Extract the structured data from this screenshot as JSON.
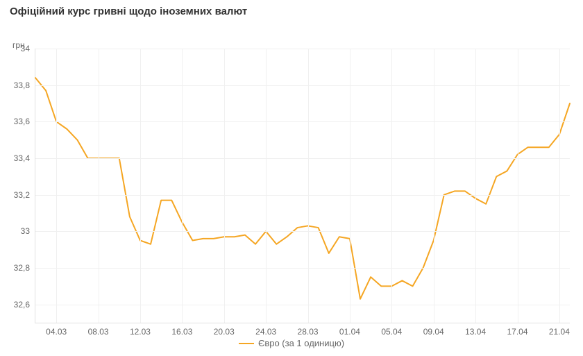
{
  "title": "Офіційний курс гривні щодо іноземних валют",
  "y_unit": "грн",
  "chart": {
    "type": "line",
    "background_color": "#ffffff",
    "grid_color": "#f0f0f0",
    "axis_color": "#e0e0e0",
    "title_fontsize": 15,
    "label_fontsize": 12,
    "label_color": "#666666",
    "ylim": [
      32.5,
      34.0
    ],
    "yticks": [
      32.6,
      32.8,
      33.0,
      33.2,
      33.4,
      33.6,
      33.8,
      34.0
    ],
    "xticks": [
      "04.03",
      "08.03",
      "12.03",
      "16.03",
      "20.03",
      "24.03",
      "28.03",
      "01.04",
      "05.04",
      "09.04",
      "13.04",
      "17.04",
      "21.04"
    ],
    "series": [
      {
        "name": "Євро (за 1 одиницю)",
        "color": "#f5a623",
        "line_width": 2,
        "values": [
          33.84,
          33.77,
          33.6,
          33.56,
          33.5,
          33.4,
          33.4,
          33.4,
          33.4,
          33.08,
          32.95,
          32.93,
          33.17,
          33.17,
          33.05,
          32.95,
          32.96,
          32.96,
          32.97,
          32.97,
          32.98,
          32.93,
          33.0,
          32.93,
          32.97,
          33.02,
          33.03,
          33.02,
          32.88,
          32.97,
          32.96,
          32.63,
          32.75,
          32.7,
          32.7,
          32.73,
          32.7,
          32.8,
          32.95,
          33.2,
          33.22,
          33.22,
          33.18,
          33.15,
          33.3,
          33.33,
          33.42,
          33.46,
          33.46,
          33.46,
          33.53,
          33.7
        ]
      }
    ],
    "legend_position": "bottom-center"
  }
}
